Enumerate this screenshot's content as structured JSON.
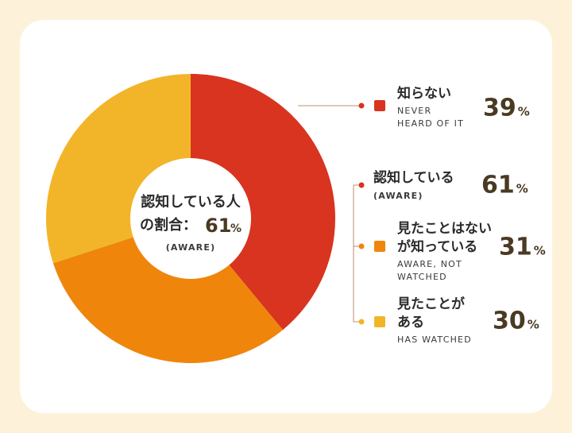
{
  "chart_data": {
    "type": "pie",
    "donut": true,
    "labels": [
      [
        "知らない"
      ],
      [
        "見たことはない",
        "が知っている"
      ],
      [
        "見たことが",
        "ある"
      ]
    ],
    "sublabels": [
      [
        "NEVER",
        "HEARD OF IT"
      ],
      [
        "AWARE, NOT",
        "WATCHED"
      ],
      [
        "HAS WATCHED"
      ]
    ],
    "values": [
      39,
      31,
      30
    ],
    "colors": [
      "#d8341f",
      "#f0850c",
      "#f2b52a"
    ],
    "unit": "%",
    "summary": {
      "label": "認知している",
      "sublabel": "(AWARE)",
      "value": 61,
      "color": "#d8341f"
    },
    "center_label": [
      "認知している人",
      "の割合："
    ]
  }
}
